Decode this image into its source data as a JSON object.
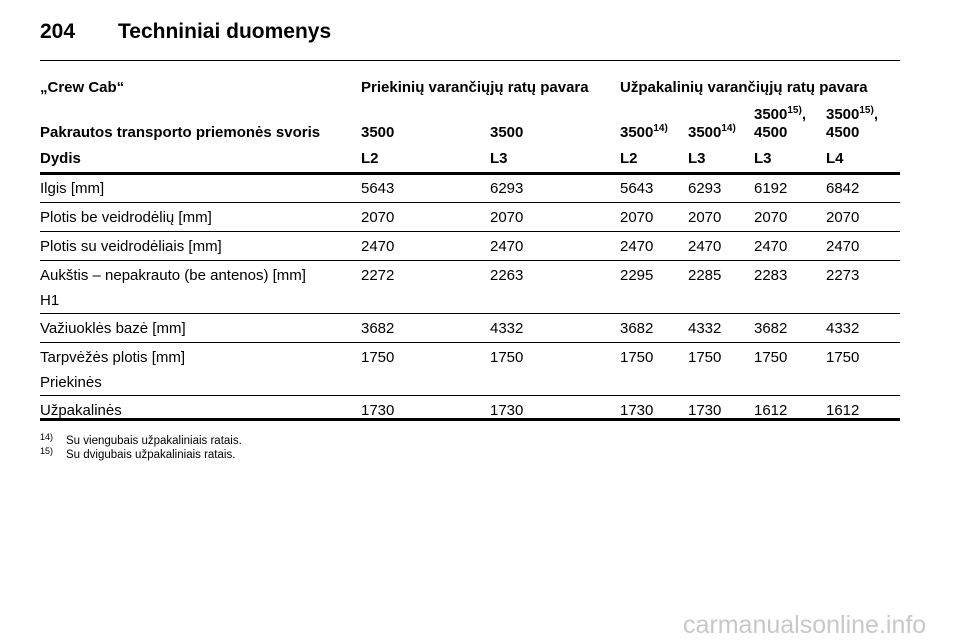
{
  "header": {
    "page": "204",
    "title": "Techniniai duomenys"
  },
  "table": {
    "group_row": [
      "„Crew Cab“",
      "Priekinių varančiųjų ratų pavara",
      "Užpakalinių varančiųjų ratų pavara"
    ],
    "weight_row": {
      "label": "Pakrautos transporto priemonės svoris",
      "cells": [
        {
          "text": "3500"
        },
        {
          "text": "3500"
        },
        {
          "text": "3500",
          "sup": "14)"
        },
        {
          "text": "3500",
          "sup": "14)"
        },
        {
          "text": "3500",
          "sup": "15)",
          "after": ",",
          "line2": "4500"
        },
        {
          "text": "3500",
          "sup": "15)",
          "after": ",",
          "line2": "4500"
        }
      ]
    },
    "size_row": {
      "label": "Dydis",
      "cells": [
        "L2",
        "L3",
        "L2",
        "L3",
        "L3",
        "L4"
      ]
    },
    "rows": [
      {
        "label": [
          "Ilgis [mm]"
        ],
        "values": [
          5643,
          6293,
          5643,
          6293,
          6192,
          6842
        ]
      },
      {
        "label": [
          "Plotis be veidrodėlių [mm]"
        ],
        "values": [
          2070,
          2070,
          2070,
          2070,
          2070,
          2070
        ]
      },
      {
        "label": [
          "Plotis su veidrodėliais [mm]"
        ],
        "values": [
          2470,
          2470,
          2470,
          2470,
          2470,
          2470
        ]
      },
      {
        "label": [
          "Aukštis – nepakrauto (be antenos) [mm]",
          "H1"
        ],
        "values": [
          2272,
          2263,
          2295,
          2285,
          2283,
          2273
        ]
      },
      {
        "label": [
          "Važiuoklės bazė [mm]"
        ],
        "values": [
          3682,
          4332,
          3682,
          4332,
          3682,
          4332
        ]
      },
      {
        "label": [
          "Tarpvėžės plotis [mm]",
          "Priekinės"
        ],
        "values": [
          1750,
          1750,
          1750,
          1750,
          1750,
          1750
        ]
      },
      {
        "label": [
          "Užpakalinės"
        ],
        "values": [
          1730,
          1730,
          1730,
          1730,
          1612,
          1612
        ]
      }
    ]
  },
  "footnotes": [
    {
      "mark": "14)",
      "text": "Su viengubais užpakaliniais ratais."
    },
    {
      "mark": "15)",
      "text": "Su dvigubais užpakaliniais ratais."
    }
  ],
  "watermark": "carmanualsonline.info"
}
